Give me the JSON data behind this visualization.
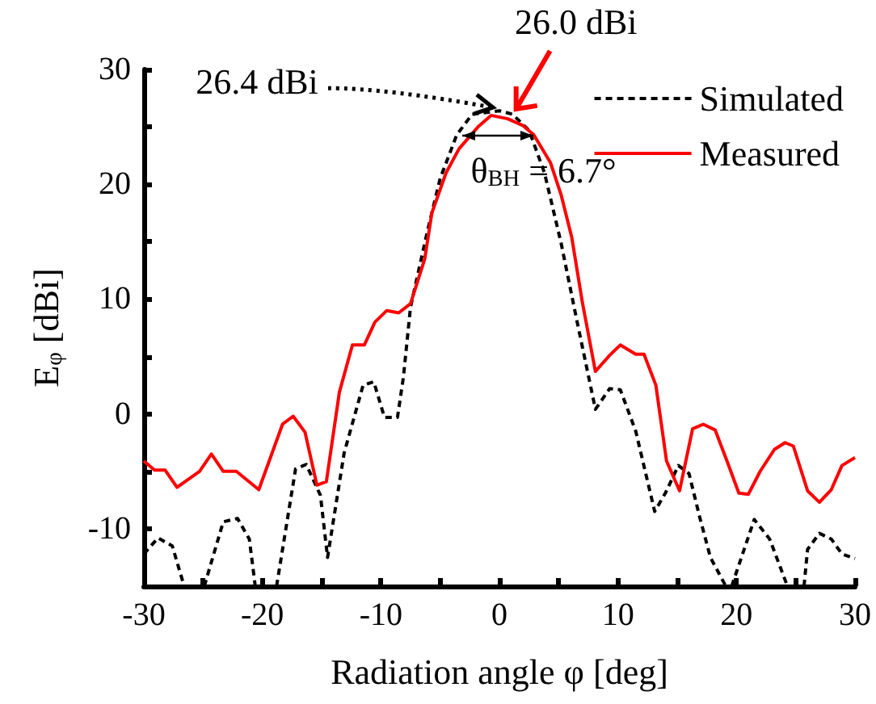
{
  "chart_data": {
    "type": "line",
    "xlabel": "Radiation angle φ [deg]",
    "ylabel": "E$_{φ}$ [dBi]",
    "xlim": [
      -30,
      30
    ],
    "ylim": [
      -15,
      30
    ],
    "xticks": [
      -30,
      {
        "value": -25,
        "label": null
      },
      -20,
      {
        "value": -15,
        "label": null
      },
      -10,
      {
        "value": -5,
        "label": null
      },
      0,
      {
        "value": 5,
        "label": null
      },
      10,
      {
        "value": 15,
        "label": null
      },
      20,
      {
        "value": 25,
        "label": null
      },
      30
    ],
    "yticks": [
      {
        "value": -15,
        "label": null
      },
      -10,
      {
        "value": -5,
        "label": null
      },
      0,
      {
        "value": 5,
        "label": null
      },
      10,
      {
        "value": 15,
        "label": null
      },
      20,
      {
        "value": 25,
        "label": null
      },
      30
    ],
    "grid": false,
    "legend": "top right",
    "marker": "none",
    "series": [
      {
        "name": "Simulated",
        "color": "#000000",
        "line_style": "dashed",
        "x": [
          -30,
          -28.8,
          -27.6,
          -26.6,
          -26.5,
          -24.9,
          -23.3,
          -22.1,
          -21.1,
          -20.6,
          -20.5,
          -18.8,
          -17.2,
          -16.3,
          -15.1,
          -14.5,
          -13.1,
          -11.5,
          -10.6,
          -9.7,
          -8.6,
          -8.1,
          -7.5,
          -6.1,
          -5.0,
          -3.6,
          -2.3,
          0,
          1.1,
          2.5,
          3.8,
          5.2,
          6.5,
          8.1,
          9.3,
          10.2,
          11.5,
          13.1,
          14.0,
          15.1,
          16.0,
          16.9,
          17.8,
          19.1,
          19.2,
          19.6,
          21.5,
          22.8,
          24.3,
          24.4,
          25.7,
          26.0,
          27.0,
          28.0,
          28.9,
          30
        ],
        "values": [
          -12.2,
          -10.8,
          -11.5,
          -15,
          null,
          -15,
          -9.4,
          -9.1,
          -10.9,
          -15,
          null,
          -15,
          -4.8,
          -4.4,
          -7.1,
          -12.5,
          -3.4,
          2.5,
          2.8,
          -0.3,
          -0.3,
          3.2,
          9.3,
          15.8,
          20.5,
          24.3,
          26.1,
          26.4,
          26.1,
          24.7,
          21.0,
          14.9,
          8.3,
          0.4,
          2.2,
          2.1,
          -1.5,
          -8.5,
          -6.9,
          -4.5,
          -5.2,
          -9.0,
          -12.5,
          -15,
          null,
          -15,
          -9.2,
          -10.9,
          -15,
          null,
          -15,
          -11.8,
          -10.4,
          -10.9,
          -12.2,
          -12.6
        ]
      },
      {
        "name": "Measured",
        "color": "#ff0000",
        "line_style": "solid",
        "x": [
          -30,
          -29.1,
          -28.2,
          -27.2,
          -25.3,
          -24.3,
          -23.3,
          -22.2,
          -20.3,
          -18.3,
          -17.4,
          -16.4,
          -15.4,
          -14.6,
          -13.5,
          -12.4,
          -11.4,
          -10.5,
          -9.5,
          -8.5,
          -7.5,
          -6.3,
          -5.7,
          -4.5,
          -3.4,
          -1.8,
          -0.7,
          0.7,
          2.0,
          2.9,
          4.3,
          5.2,
          6.1,
          7.0,
          8.1,
          9.3,
          10.2,
          11.5,
          12.2,
          13.2,
          14.1,
          15.2,
          16.3,
          17.2,
          18.2,
          19.2,
          20.2,
          21.0,
          22.0,
          23.2,
          24.1,
          24.8,
          26.0,
          27.0,
          28.0,
          28.9,
          30
        ],
        "values": [
          -4.1,
          -4.9,
          -4.9,
          -6.4,
          -5.0,
          -3.5,
          -5.0,
          -5.0,
          -6.6,
          -0.9,
          -0.2,
          -1.6,
          -6.2,
          -5.9,
          1.9,
          6.0,
          6.0,
          8.0,
          9.0,
          8.8,
          9.6,
          13.5,
          17.5,
          21.0,
          23.1,
          25.0,
          26.0,
          25.7,
          25.1,
          24.3,
          21.9,
          19.1,
          15.4,
          9.7,
          3.7,
          5.1,
          6.0,
          5.2,
          5.2,
          2.5,
          -4.1,
          -6.7,
          -1.3,
          -0.9,
          -1.4,
          -4.1,
          -6.9,
          -7.0,
          -5.0,
          -3.1,
          -2.5,
          -2.8,
          -6.7,
          -7.7,
          -6.6,
          -4.5,
          -3.8
        ]
      }
    ],
    "annotations": [
      {
        "text": "26.4 dBi",
        "x": 0,
        "y": 26.4
      },
      {
        "text": "26.0 dBi",
        "x": 1,
        "y": 26.0
      },
      {
        "text": "θ$_{BH}$ = 6.7°",
        "x": 2.9,
        "y": 24.3
      }
    ]
  }
}
